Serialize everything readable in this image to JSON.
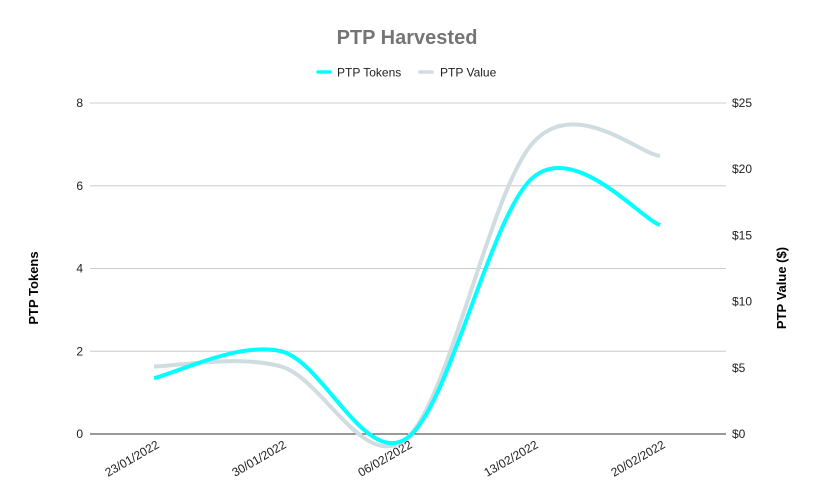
{
  "chart_data": {
    "type": "line",
    "title": "PTP Harvested",
    "categories": [
      "23/01/2022",
      "30/01/2022",
      "06/02/2022",
      "13/02/2022",
      "20/02/2022"
    ],
    "series": [
      {
        "name": "PTP Tokens",
        "axis": "left",
        "color": "#00FFFF",
        "values": [
          1.35,
          2.0,
          -0.1,
          6.2,
          5.05
        ]
      },
      {
        "name": "PTP Value",
        "axis": "right",
        "color": "#CFDCE0",
        "values": [
          5.1,
          5.1,
          -0.3,
          22.0,
          21.0
        ]
      }
    ],
    "ylabel": "PTP Tokens",
    "ylabel_right": "PTP Value ($)",
    "ylim": [
      0,
      8
    ],
    "ylim_right": [
      0,
      25
    ],
    "yticks": [
      0,
      2,
      4,
      6,
      8
    ],
    "yticks_right": [
      "$0",
      "$5",
      "$10",
      "$15",
      "$20",
      "$25"
    ],
    "legend_position": "top",
    "grid": true
  }
}
